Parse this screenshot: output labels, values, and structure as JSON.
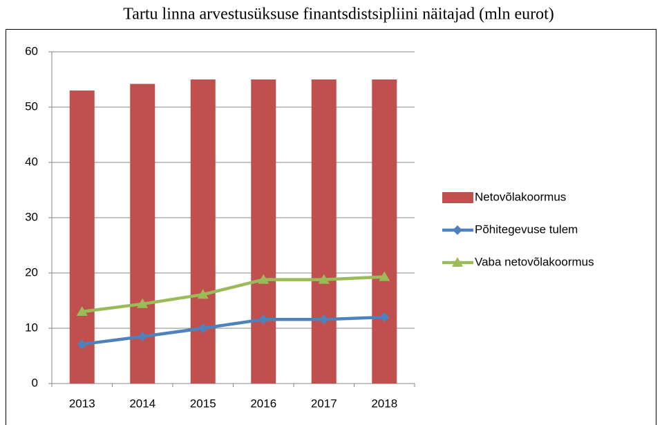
{
  "chart_data": {
    "type": "bar",
    "title": "Tartu linna arvestusüksuse finantsdistsipliini näitajad (mln eurot)",
    "categories": [
      "2013",
      "2014",
      "2015",
      "2016",
      "2017",
      "2018"
    ],
    "series": [
      {
        "name": "Netovõlakoormus",
        "type": "bar",
        "color": "#c0504d",
        "values": [
          53,
          54.2,
          55,
          55,
          55,
          55
        ]
      },
      {
        "name": "Põhitegevuse tulem",
        "type": "line",
        "marker": "diamond",
        "color": "#4f81bd",
        "values": [
          7.1,
          8.5,
          10,
          11.6,
          11.6,
          12
        ]
      },
      {
        "name": "Vaba netovõlakoormus",
        "type": "line",
        "marker": "triangle",
        "color": "#9bbb59",
        "values": [
          13,
          14.4,
          16.1,
          18.8,
          18.8,
          19.3
        ]
      }
    ],
    "ylim": [
      0,
      60
    ],
    "yticks": [
      0,
      10,
      20,
      30,
      40,
      50,
      60
    ],
    "grid": true,
    "legend": "right"
  }
}
